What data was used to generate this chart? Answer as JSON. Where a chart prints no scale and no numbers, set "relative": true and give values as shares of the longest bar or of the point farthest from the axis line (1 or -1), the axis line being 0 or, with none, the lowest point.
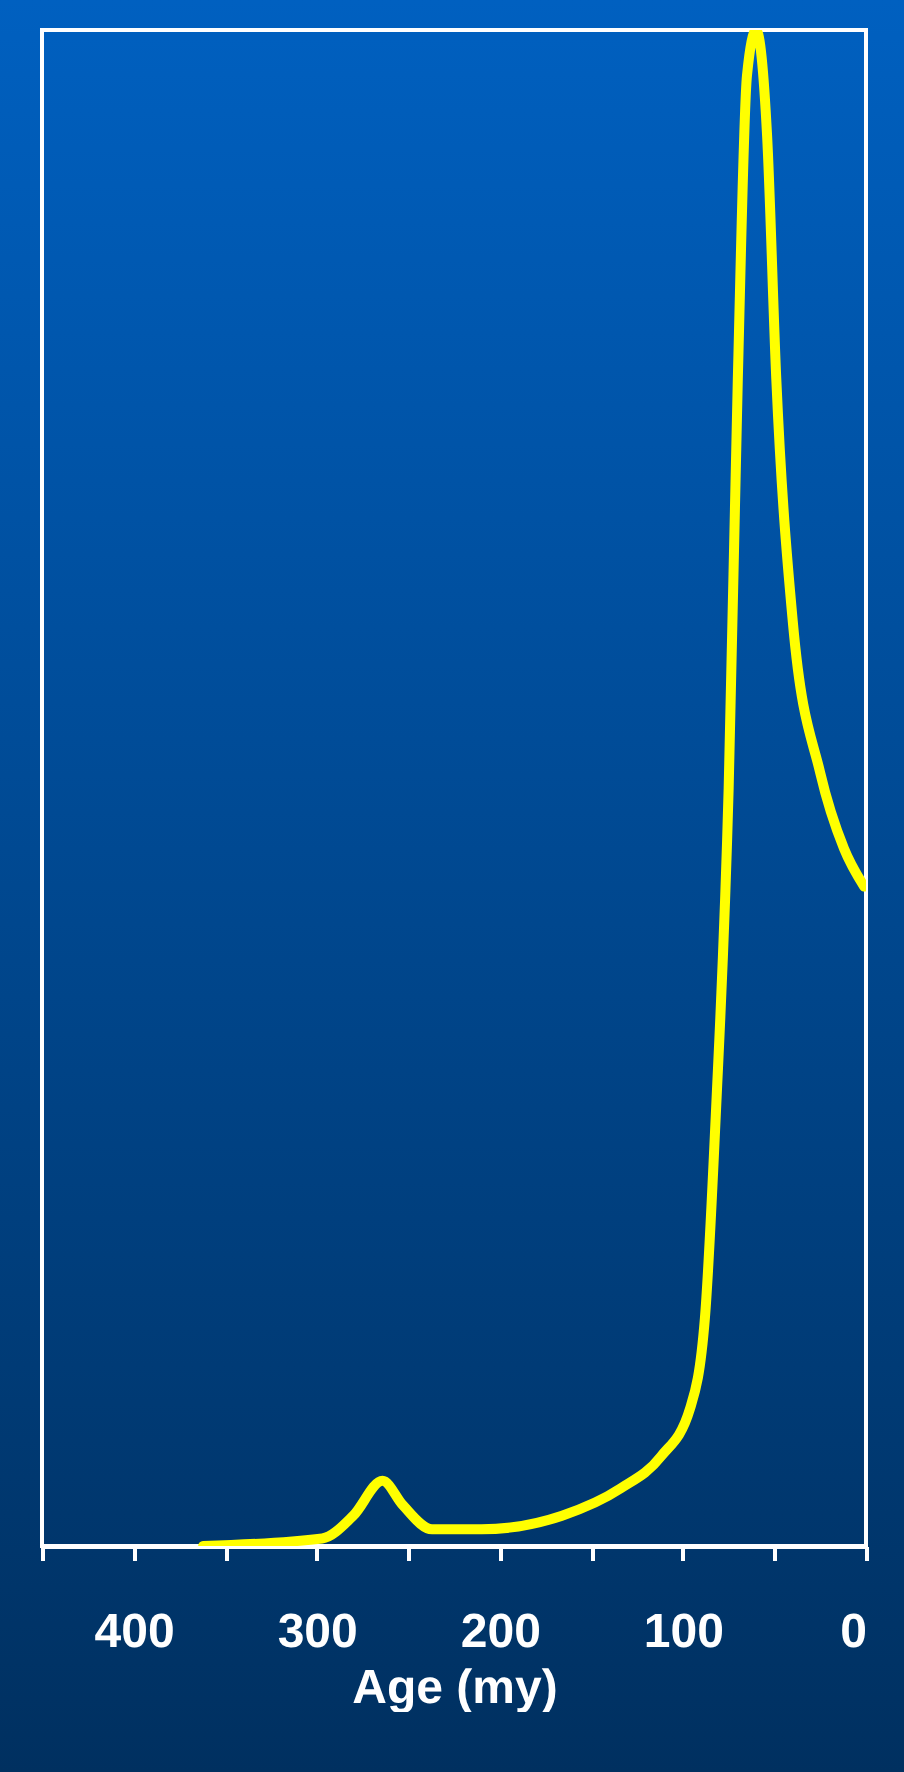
{
  "chart_data": {
    "type": "line",
    "xlabel": "Age (my)",
    "relative": true,
    "xlim": [
      450,
      0
    ],
    "xticks": [
      {
        "value": 450,
        "label": null
      },
      400,
      {
        "value": 350,
        "label": null
      },
      300,
      {
        "value": 250,
        "label": null
      },
      200,
      {
        "value": 150,
        "label": null
      },
      100,
      {
        "value": 50,
        "label": null
      },
      0
    ],
    "x": [
      362,
      297,
      280,
      264,
      253,
      237,
      210,
      166,
      134,
      112,
      96,
      88,
      82,
      75,
      70,
      65,
      60,
      54,
      49,
      40,
      25,
      12,
      1
    ],
    "series": [
      {
        "color": "#ffff00",
        "values": [
          0,
          0.005,
          0.02,
          0.043,
          0.027,
          0.011,
          0.011,
          0.02,
          0.038,
          0.059,
          0.091,
          0.15,
          0.285,
          0.5,
          0.77,
          0.97,
          1,
          0.93,
          0.77,
          0.61,
          0.51,
          0.46,
          0.435
        ]
      }
    ],
    "grid": false,
    "marker": "none",
    "line_style": "solid"
  }
}
